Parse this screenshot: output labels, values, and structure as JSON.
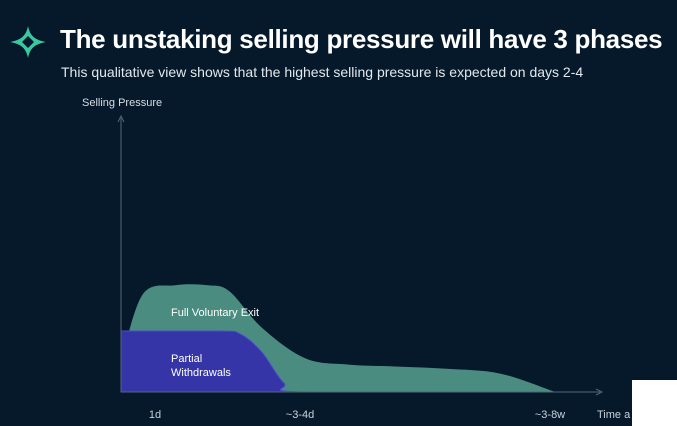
{
  "header": {
    "title": "The unstaking selling pressure will have 3 phases",
    "subtitle": "This qualitative view shows that the highest selling pressure is expected on days 2-4"
  },
  "logo": {
    "icon": "sparkle-star-icon",
    "color": "#39c9a0"
  },
  "chart_data": {
    "type": "area",
    "title": "",
    "ylabel": "Selling Pressure",
    "xlabel": "Time a",
    "x_ticks": [
      "1d",
      "~3-4d",
      "~3-8w"
    ],
    "y_ticks": [],
    "grid": false,
    "qualitative": true,
    "series": [
      {
        "name": "Full Voluntary Exit",
        "color": "#4a8c80",
        "x": [
          1,
          1.4,
          2,
          2.6,
          3,
          3.6,
          4.4,
          5.2,
          6,
          7,
          8,
          9
        ],
        "y": [
          0.5,
          1.6,
          1.75,
          1.75,
          1.65,
          1.05,
          0.55,
          0.45,
          0.42,
          0.38,
          0.3,
          0
        ]
      },
      {
        "name": "Partial Withdrawals",
        "color": "#3535a8",
        "x": [
          1,
          2.8,
          3.2,
          3.6,
          4,
          4.4,
          9
        ],
        "y": [
          1,
          1,
          0.95,
          0.65,
          0.15,
          0,
          0
        ]
      }
    ]
  }
}
